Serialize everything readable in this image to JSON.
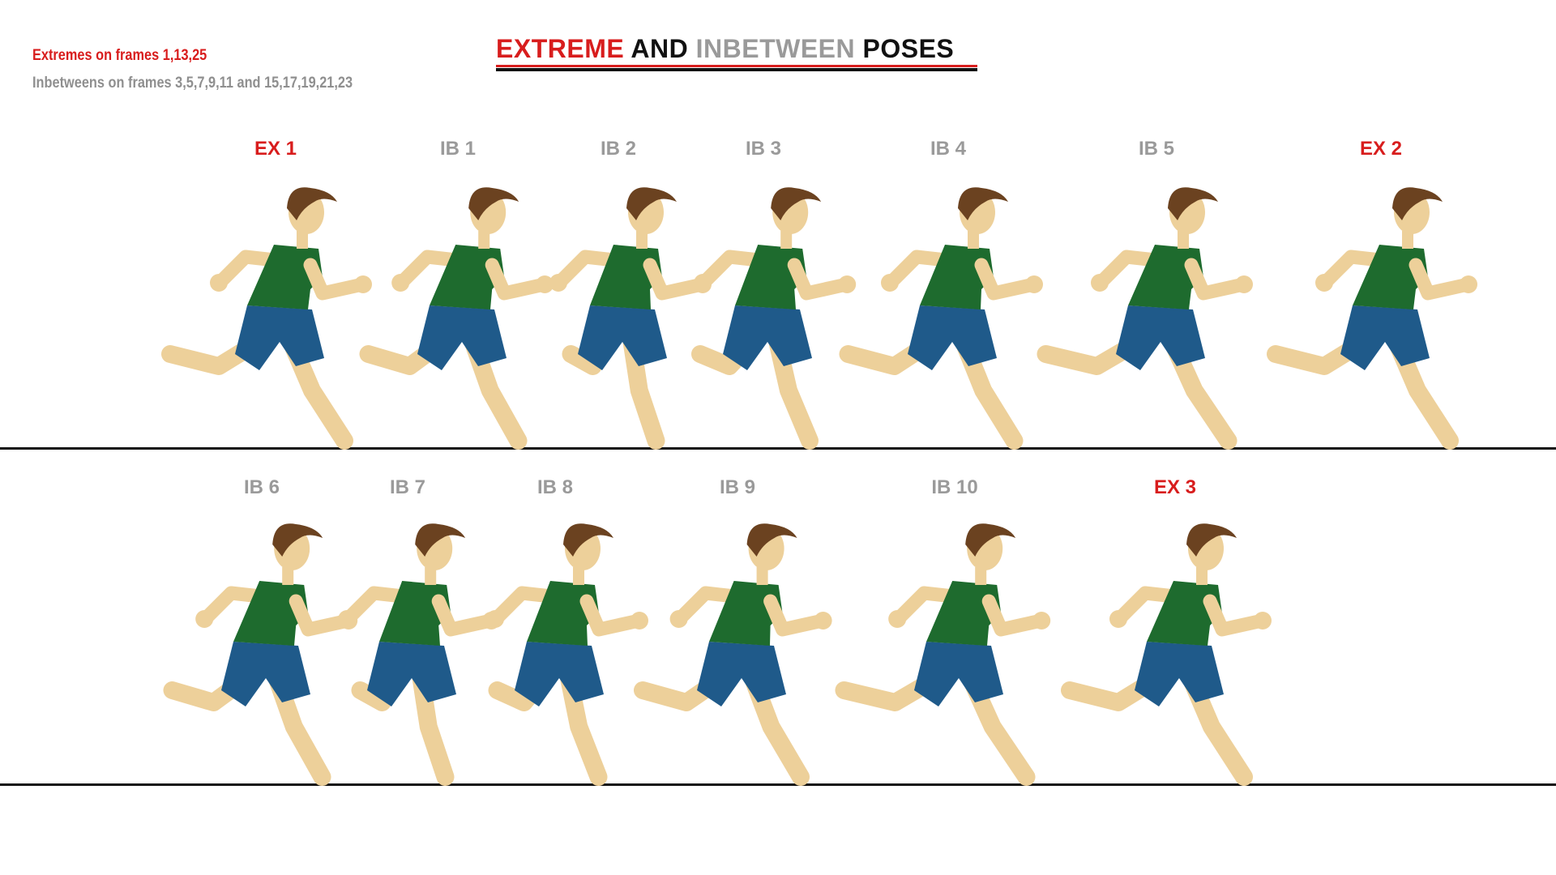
{
  "title": {
    "part1": "EXTREME",
    "part2": " AND ",
    "part3": "INBETWEEN",
    "part4": " POSES"
  },
  "notes": {
    "extremes": "Extremes on frames 1,13,25",
    "inbetweens": "Inbetweens on frames 3,5,7,9,11 and 15,17,19,21,23"
  },
  "colors": {
    "extreme": "#d81d1d",
    "inbetween": "#9a9a9a",
    "shirt": "#1e6b2e",
    "shorts": "#1f5a8a",
    "skin": "#edd09a",
    "hair": "#6b4220"
  },
  "rows": [
    {
      "frames": [
        {
          "label": "EX 1",
          "kind": "extreme"
        },
        {
          "label": "IB 1",
          "kind": "inbetween"
        },
        {
          "label": "IB 2",
          "kind": "inbetween"
        },
        {
          "label": "IB 3",
          "kind": "inbetween"
        },
        {
          "label": "IB 4",
          "kind": "inbetween"
        },
        {
          "label": "IB 5",
          "kind": "inbetween"
        },
        {
          "label": "EX 2",
          "kind": "extreme"
        }
      ]
    },
    {
      "frames": [
        {
          "label": "IB 6",
          "kind": "inbetween"
        },
        {
          "label": "IB 7",
          "kind": "inbetween"
        },
        {
          "label": "IB 8",
          "kind": "inbetween"
        },
        {
          "label": "IB 9",
          "kind": "inbetween"
        },
        {
          "label": "IB 10",
          "kind": "inbetween"
        },
        {
          "label": "EX 3",
          "kind": "extreme"
        }
      ]
    }
  ]
}
